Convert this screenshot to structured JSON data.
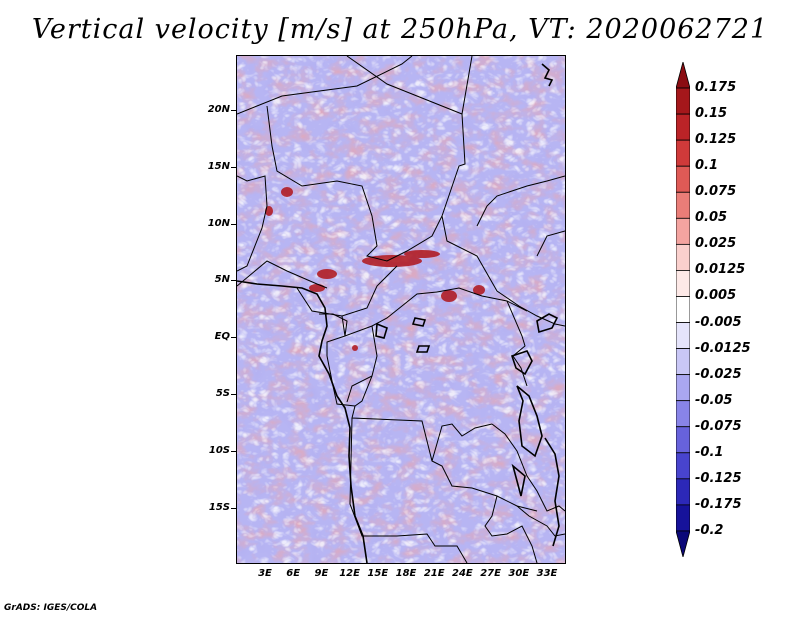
{
  "title": "Vertical velocity [m/s] at 250hPa, VT: 2020062721",
  "y_ticks": [
    "20N",
    "15N",
    "10N",
    "5N",
    "EQ",
    "5S",
    "10S",
    "15S"
  ],
  "x_ticks": [
    "3E",
    "6E",
    "9E",
    "12E",
    "15E",
    "18E",
    "21E",
    "24E",
    "27E",
    "30E",
    "33E"
  ],
  "colorbar": {
    "labels": [
      "0.175",
      "0.15",
      "0.125",
      "0.1",
      "0.075",
      "0.05",
      "0.025",
      "0.0125",
      "0.005",
      "-0.005",
      "-0.0125",
      "-0.025",
      "-0.05",
      "-0.075",
      "-0.1",
      "-0.125",
      "-0.175",
      "-0.2"
    ],
    "colors": [
      "#8b0d12",
      "#a5171b",
      "#bb2327",
      "#d03a3a",
      "#df5a56",
      "#ea7d78",
      "#f4a4a0",
      "#fad0cd",
      "#fde9e7",
      "#ffffff",
      "#e5e4fb",
      "#c9c7f6",
      "#aaa7f1",
      "#8884e8",
      "#6762dc",
      "#4844ce",
      "#2c28b8",
      "#16129a",
      "#0b0878"
    ]
  },
  "footer": "GrADS: IGES/COLA"
}
